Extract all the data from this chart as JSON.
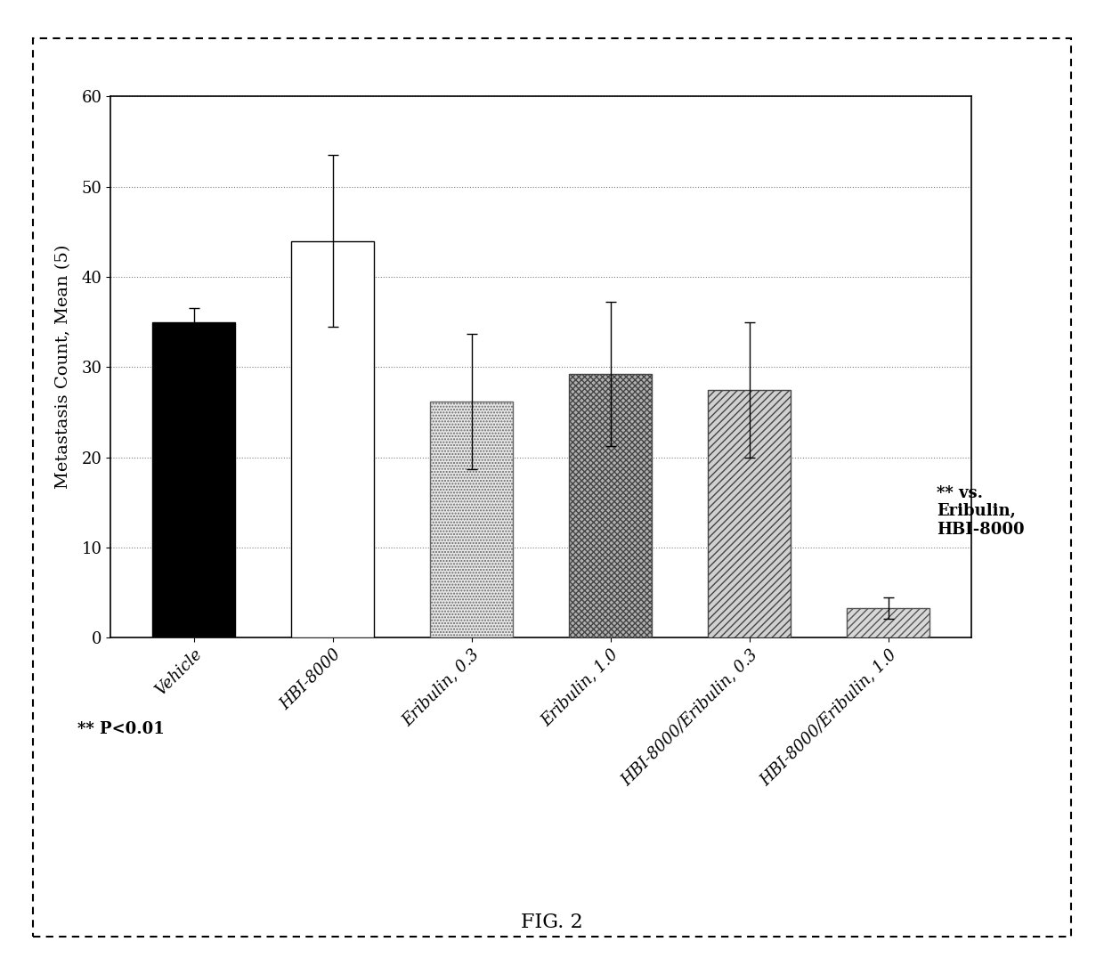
{
  "categories": [
    "Vehicle",
    "HBI-8000",
    "Eribulin, 0.3",
    "Eribulin, 1.0",
    "HBI-8000/Eribulin, 0.3",
    "HBI-8000/Eribulin, 1.0"
  ],
  "values": [
    35.0,
    44.0,
    26.2,
    29.2,
    27.5,
    3.3
  ],
  "errors": [
    1.5,
    9.5,
    7.5,
    8.0,
    7.5,
    1.2
  ],
  "ylabel": "Metastasis Count, Mean (5)",
  "ylim": [
    0,
    60
  ],
  "yticks": [
    0,
    10,
    20,
    30,
    40,
    50,
    60
  ],
  "annotation_text": "** vs.\nEribulin,\nHBI-8000",
  "footnote_text": "** P<0.01",
  "figure_label": "FIG. 2",
  "background_color": "#ffffff",
  "plot_bg_color": "#ffffff",
  "bar_width": 0.6,
  "font_size_ticks": 13,
  "font_size_ylabel": 14,
  "font_size_annotation": 13,
  "font_size_footnote": 13,
  "font_size_figlabel": 16
}
